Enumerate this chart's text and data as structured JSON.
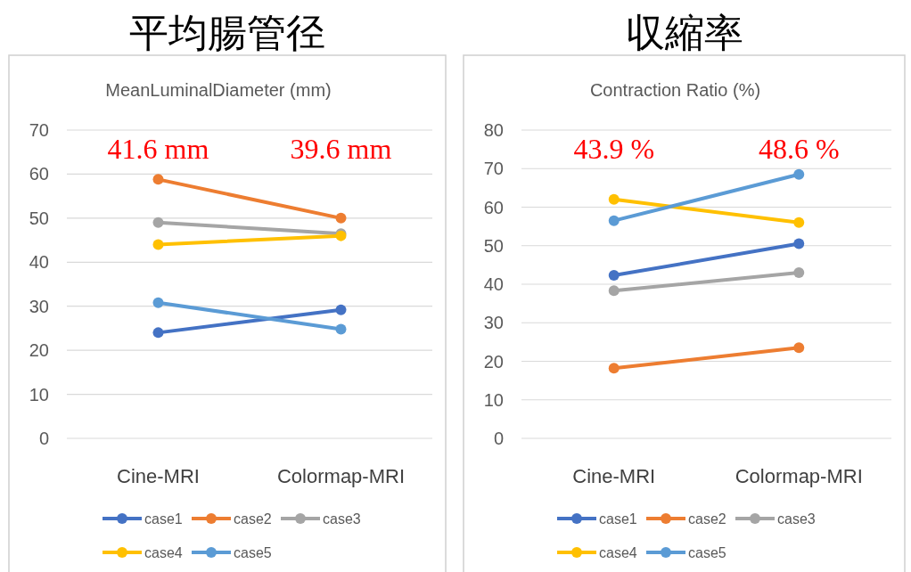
{
  "chart_data": [
    {
      "type": "line",
      "title": "平均腸管径",
      "subtitle": "MeanLuminalDiameter (mm)",
      "categories": [
        "Cine-MRI",
        "Colormap-MRI"
      ],
      "ylim": [
        0,
        70
      ],
      "yticks": [
        0,
        10,
        20,
        30,
        40,
        50,
        60,
        70
      ],
      "grid": "y",
      "legend": "bottom",
      "marker": "circle",
      "annotations": [
        "41.6 mm",
        "39.6 mm"
      ],
      "series": [
        {
          "name": "case1",
          "color": "#4472c4",
          "values": [
            24,
            29.2
          ]
        },
        {
          "name": "case2",
          "color": "#ed7d31",
          "values": [
            58.8,
            50
          ]
        },
        {
          "name": "case3",
          "color": "#a5a5a5",
          "values": [
            49,
            46.5
          ]
        },
        {
          "name": "case4",
          "color": "#ffc000",
          "values": [
            44,
            46
          ]
        },
        {
          "name": "case5",
          "color": "#5b9bd5",
          "values": [
            30.8,
            24.8
          ]
        }
      ]
    },
    {
      "type": "line",
      "title": "収縮率",
      "subtitle": "Contraction Ratio (%)",
      "categories": [
        "Cine-MRI",
        "Colormap-MRI"
      ],
      "ylim": [
        0,
        80
      ],
      "yticks": [
        0,
        10,
        20,
        30,
        40,
        50,
        60,
        70,
        80
      ],
      "grid": "y",
      "legend": "bottom",
      "marker": "circle",
      "annotations": [
        "43.9 %",
        "48.6 %"
      ],
      "series": [
        {
          "name": "case1",
          "color": "#4472c4",
          "values": [
            42.3,
            50.5
          ]
        },
        {
          "name": "case2",
          "color": "#ed7d31",
          "values": [
            18.2,
            23.5
          ]
        },
        {
          "name": "case3",
          "color": "#a5a5a5",
          "values": [
            38.3,
            43
          ]
        },
        {
          "name": "case4",
          "color": "#ffc000",
          "values": [
            62,
            56
          ]
        },
        {
          "name": "case5",
          "color": "#5b9bd5",
          "values": [
            56.5,
            68.5
          ]
        }
      ]
    }
  ]
}
